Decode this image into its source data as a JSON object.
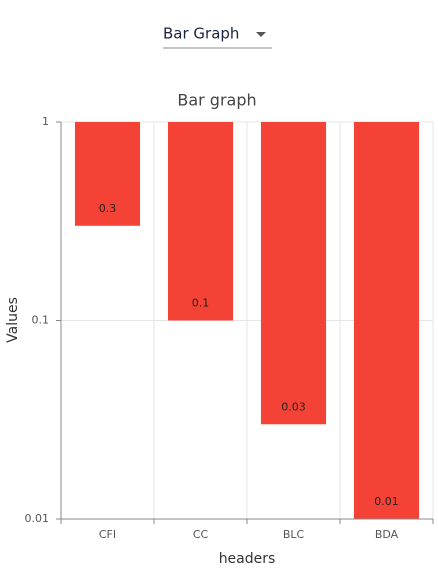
{
  "dropdown": {
    "label": "Bar Graph"
  },
  "chart_data": {
    "type": "bar",
    "title": "Bar graph",
    "x_label": "headers",
    "y_label": "Values",
    "categories": [
      "CFI",
      "CC",
      "BLC",
      "BDA"
    ],
    "values": [
      0.3,
      0.1,
      0.03,
      0.01
    ],
    "color": "#f44336",
    "ylim": [
      0.01,
      1
    ],
    "yticks": [
      0.01,
      0.1,
      1
    ],
    "yscale": "log",
    "grid": true
  }
}
